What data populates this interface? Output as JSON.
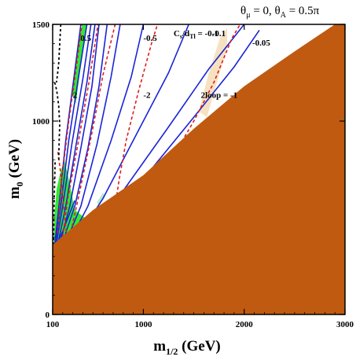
{
  "chart_data": {
    "type": "line",
    "title_prefix": "θ",
    "title_sub1": "μ",
    "title_mid": " = 0, θ",
    "title_sub2": "A",
    "title_suffix": " = 0.5π",
    "xlabel_main": "m",
    "xlabel_sub": "1/2",
    "xlabel_unit": " (GeV)",
    "ylabel_main": "m",
    "ylabel_sub": "0",
    "ylabel_unit": " (GeV)",
    "xlim": [
      100,
      3000
    ],
    "ylim": [
      0,
      1500
    ],
    "x_ticks": [
      {
        "value": 100,
        "label": "100"
      },
      {
        "value": 1000,
        "label": "1000"
      },
      {
        "value": 2000,
        "label": "2000"
      },
      {
        "value": 3000,
        "label": "3000"
      }
    ],
    "y_ticks": [
      {
        "value": 0,
        "label": "0"
      },
      {
        "value": 1000,
        "label": "1000"
      },
      {
        "value": 1500,
        "label": "1500"
      }
    ],
    "colors": {
      "excluded_region": "#bf5a10",
      "green_region": "#33e833",
      "light_green_region": "#b8ecc8",
      "tan_region": "#f6e2c0",
      "blue_contour": "#1a24d6",
      "red_contour": "#e01c1c",
      "black_contour": "#000000"
    },
    "excluded_boundary": [
      [
        100,
        0
      ],
      [
        100,
        360
      ],
      [
        500,
        540
      ],
      [
        1000,
        720
      ],
      [
        1500,
        960
      ],
      [
        2000,
        1180
      ],
      [
        2500,
        1360
      ],
      [
        2900,
        1500
      ],
      [
        3000,
        1500
      ],
      [
        3000,
        0
      ]
    ],
    "green_region": [
      [
        110,
        360
      ],
      [
        118,
        520
      ],
      [
        140,
        650
      ],
      [
        175,
        730
      ],
      [
        215,
        800
      ],
      [
        260,
        700
      ],
      [
        320,
        540
      ],
      [
        420,
        500
      ],
      [
        440,
        420
      ],
      [
        380,
        370
      ],
      [
        240,
        355
      ],
      [
        140,
        350
      ]
    ],
    "green_band": [
      [
        290,
        1150
      ],
      [
        350,
        1400
      ],
      [
        395,
        1500
      ],
      [
        435,
        1500
      ],
      [
        395,
        1350
      ],
      [
        330,
        1090
      ]
    ],
    "tan_region": [
      [
        1550,
        1050
      ],
      [
        1650,
        1250
      ],
      [
        1760,
        1430
      ],
      [
        1830,
        1480
      ],
      [
        1830,
        1380
      ],
      [
        1730,
        1200
      ],
      [
        1630,
        1020
      ]
    ],
    "light_green_patches": [
      [
        [
          1750,
          1020
        ],
        [
          1800,
          1070
        ],
        [
          1820,
          1040
        ],
        [
          1780,
          1000
        ]
      ],
      [
        [
          1500,
          850
        ],
        [
          1560,
          900
        ],
        [
          1580,
          880
        ],
        [
          1530,
          840
        ]
      ],
      [
        [
          540,
          580
        ],
        [
          600,
          630
        ],
        [
          620,
          610
        ],
        [
          560,
          560
        ]
      ],
      [
        [
          1300,
          800
        ],
        [
          1350,
          840
        ],
        [
          1370,
          820
        ],
        [
          1320,
          790
        ]
      ]
    ],
    "blue_contours": [
      [
        [
          120,
          360
        ],
        [
          160,
          550
        ],
        [
          230,
          900
        ],
        [
          320,
          1260
        ],
        [
          380,
          1500
        ]
      ],
      [
        [
          125,
          360
        ],
        [
          180,
          560
        ],
        [
          260,
          900
        ],
        [
          360,
          1240
        ],
        [
          440,
          1500
        ]
      ],
      [
        [
          135,
          360
        ],
        [
          200,
          560
        ],
        [
          290,
          880
        ],
        [
          400,
          1220
        ],
        [
          480,
          1500
        ]
      ],
      [
        [
          150,
          360
        ],
        [
          230,
          560
        ],
        [
          330,
          870
        ],
        [
          440,
          1200
        ],
        [
          520,
          1500
        ]
      ],
      [
        [
          170,
          360
        ],
        [
          270,
          560
        ],
        [
          380,
          860
        ],
        [
          490,
          1180
        ],
        [
          560,
          1500
        ]
      ],
      [
        [
          190,
          360
        ],
        [
          320,
          560
        ],
        [
          450,
          860
        ],
        [
          560,
          1180
        ],
        [
          640,
          1500
        ]
      ],
      [
        [
          220,
          360
        ],
        [
          380,
          560
        ],
        [
          540,
          880
        ],
        [
          680,
          1230
        ],
        [
          770,
          1500
        ]
      ],
      [
        [
          250,
          360
        ],
        [
          450,
          560
        ],
        [
          680,
          900
        ],
        [
          880,
          1230
        ],
        [
          1000,
          1500
        ]
      ],
      [
        [
          300,
          360
        ],
        [
          600,
          600
        ],
        [
          950,
          950
        ],
        [
          1250,
          1250
        ],
        [
          1450,
          1500
        ]
      ],
      [
        [
          400,
          400
        ],
        [
          800,
          640
        ],
        [
          1250,
          970
        ],
        [
          1650,
          1270
        ],
        [
          2000,
          1500
        ]
      ],
      [
        [
          500,
          460
        ],
        [
          1000,
          700
        ],
        [
          1500,
          1020
        ],
        [
          1900,
          1280
        ],
        [
          2150,
          1470
        ]
      ],
      [
        [
          140,
          360
        ],
        [
          200,
          430
        ],
        [
          260,
          510
        ],
        [
          320,
          590
        ]
      ]
    ],
    "red_contours": [
      [
        [
          150,
          420
        ],
        [
          190,
          700
        ],
        [
          260,
          1000
        ],
        [
          330,
          1260
        ],
        [
          390,
          1500
        ]
      ],
      [
        [
          200,
          400
        ],
        [
          250,
          600
        ],
        [
          350,
          880
        ],
        [
          460,
          1200
        ],
        [
          550,
          1500
        ]
      ],
      [
        [
          270,
          400
        ],
        [
          370,
          640
        ],
        [
          490,
          940
        ],
        [
          600,
          1240
        ],
        [
          720,
          1500
        ]
      ],
      [
        [
          720,
          560
        ],
        [
          760,
          700
        ],
        [
          830,
          900
        ],
        [
          950,
          1150
        ],
        [
          1080,
          1400
        ],
        [
          1140,
          1500
        ]
      ],
      [
        [
          1300,
          820
        ],
        [
          1500,
          1000
        ],
        [
          1700,
          1200
        ],
        [
          1880,
          1430
        ],
        [
          1960,
          1500
        ]
      ],
      [
        [
          240,
          400
        ],
        [
          210,
          560
        ],
        [
          175,
          750
        ],
        [
          150,
          850
        ]
      ]
    ],
    "black_contours": [
      [
        [
          180,
          1500
        ],
        [
          170,
          1400
        ],
        [
          160,
          1300
        ],
        [
          150,
          1250
        ],
        [
          138,
          1200
        ]
      ],
      [
        [
          120,
          1200
        ],
        [
          140,
          1160
        ],
        [
          160,
          1080
        ],
        [
          170,
          980
        ],
        [
          165,
          900
        ],
        [
          160,
          800
        ]
      ],
      [
        [
          108,
          360
        ],
        [
          112,
          500
        ],
        [
          118,
          650
        ],
        [
          125,
          800
        ]
      ]
    ],
    "annotations": [
      {
        "text": "0.5",
        "x": 375,
        "y": 1415
      },
      {
        "text": "-0.5",
        "x": 1000,
        "y": 1415
      },
      {
        "text": "-0.1",
        "x": 1680,
        "y": 1440
      },
      {
        "text": "-0.05",
        "x": 2080,
        "y": 1390
      },
      {
        "text": "2",
        "x": 300,
        "y": 1120
      },
      {
        "text": "-2",
        "x": 1000,
        "y": 1120
      },
      {
        "text": "2loop = -1",
        "x": 1570,
        "y": 1120
      }
    ],
    "cs_label": {
      "main": "C",
      "sub1": "s",
      "mid": "/d",
      "sub2": "Tl",
      "eq": " = -0.1",
      "x": 1300,
      "y": 1440
    }
  }
}
